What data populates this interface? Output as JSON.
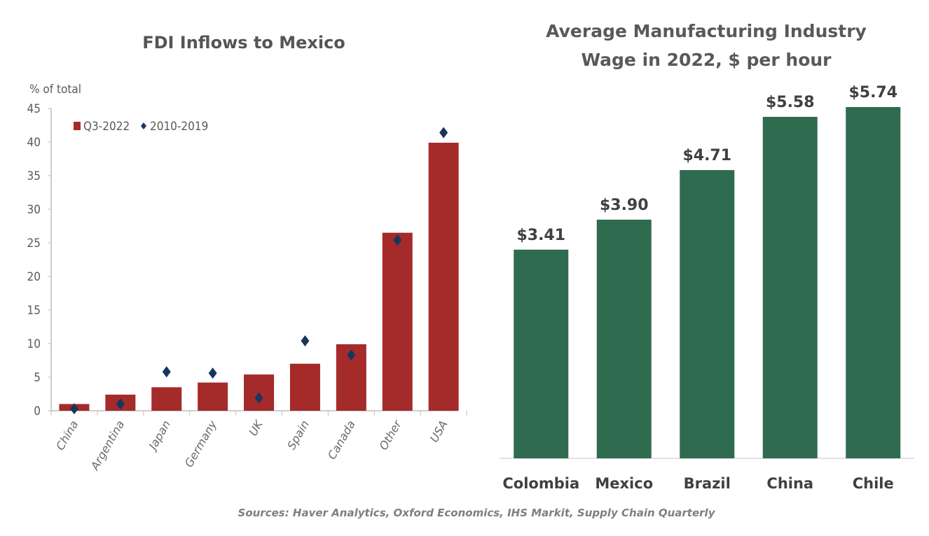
{
  "chart_data": [
    {
      "type": "bar",
      "title": "FDI Inflows to Mexico",
      "ylabel": "% of total",
      "ylim": [
        0,
        45
      ],
      "yticks": [
        "0",
        "5",
        "10",
        "15",
        "20",
        "25",
        "30",
        "35",
        "40",
        "45"
      ],
      "categories": [
        "China",
        "Argentina",
        "Japan",
        "Germany",
        "UK",
        "Spain",
        "Canada",
        "Other",
        "USA"
      ],
      "legend_placement": "top-left",
      "grid": false,
      "series": [
        {
          "name": "Q3-2022",
          "type": "bar",
          "color": "#A52A2A",
          "values": [
            1.0,
            2.4,
            3.5,
            4.2,
            5.4,
            7.0,
            9.9,
            26.5,
            39.9
          ]
        },
        {
          "name": "2010-2019",
          "type": "scatter",
          "marker": "diamond",
          "color": "#17365D",
          "values": [
            0.3,
            1.0,
            5.8,
            5.6,
            1.9,
            10.4,
            8.3,
            25.4,
            41.4
          ]
        }
      ]
    },
    {
      "type": "bar",
      "title_lines": [
        "Average Manufacturing Industry",
        "Wage in 2022, $ per hour"
      ],
      "categories": [
        "Colombia",
        "Mexico",
        "Brazil",
        "China",
        "Chile"
      ],
      "values": [
        3.41,
        3.9,
        4.71,
        5.58,
        5.74
      ],
      "data_labels": [
        "$3.41",
        "$3.90",
        "$4.71",
        "$5.58",
        "$5.74"
      ],
      "color": "#2E6B4F",
      "ylim": [
        0,
        5.74
      ],
      "grid": false
    }
  ],
  "source": "Sources: Haver Analytics, Oxford Economics, IHS Markit, Supply Chain Quarterly"
}
